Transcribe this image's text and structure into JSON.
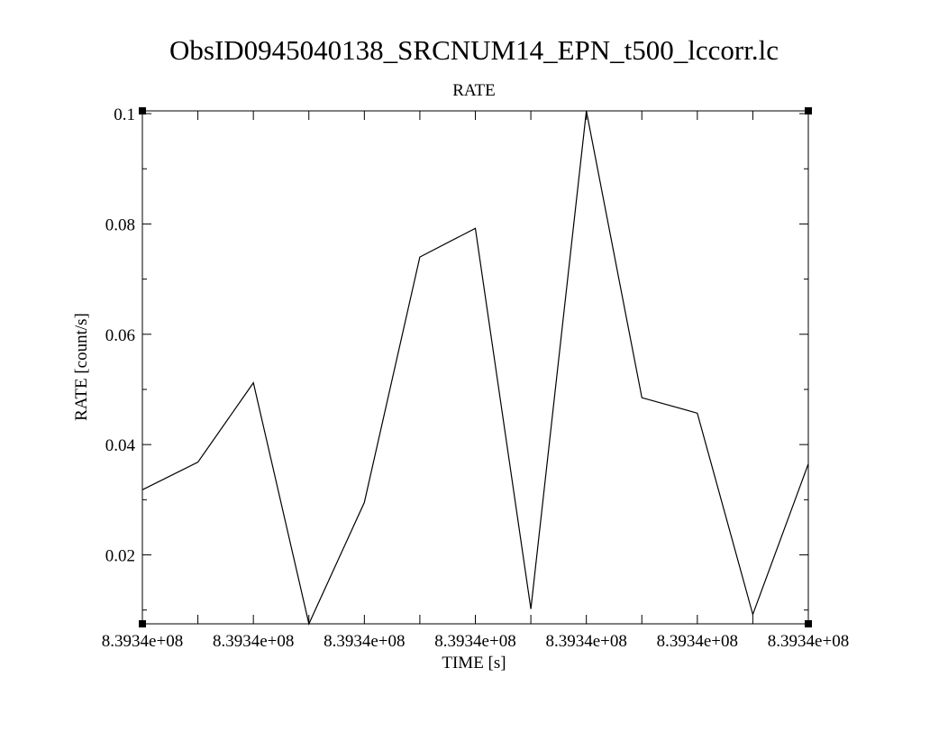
{
  "chart_data": {
    "type": "line",
    "title": "ObsID0945040138_SRCNUM14_EPN_t500_lccorr.lc",
    "subtitle": "RATE",
    "xlabel": "TIME [s]",
    "ylabel": "RATE [count/s]",
    "xlim": [
      0,
      6000
    ],
    "ylim": [
      0.0075,
      0.1005
    ],
    "x_ticks": [
      0,
      500,
      1000,
      1500,
      2000,
      2500,
      3000,
      3500,
      4000,
      4500,
      5000,
      5500,
      6000
    ],
    "x_tick_labels": [
      "8.3934e+08",
      "",
      "8.3934e+08",
      "",
      "8.3934e+08",
      "",
      "8.3934e+08",
      "",
      "8.3934e+08",
      "",
      "8.3934e+08",
      "",
      "8.3934e+08"
    ],
    "y_ticks": [
      0.02,
      0.04,
      0.06,
      0.08,
      0.1
    ],
    "y_tick_labels": [
      "0.02",
      "0.04",
      "0.06",
      "0.08",
      "0.1"
    ],
    "y_minor_ticks": [
      0.01,
      0.03,
      0.05,
      0.07,
      0.09
    ],
    "grid": false,
    "line_color": "#000000",
    "x": [
      0,
      500,
      1000,
      1500,
      2000,
      2500,
      3000,
      3500,
      4000,
      4500,
      5000,
      5500,
      6000
    ],
    "y": [
      0.0318,
      0.0368,
      0.0512,
      0.0075,
      0.0295,
      0.074,
      0.0792,
      0.0102,
      0.1005,
      0.0485,
      0.0457,
      0.0092,
      0.0365
    ]
  }
}
